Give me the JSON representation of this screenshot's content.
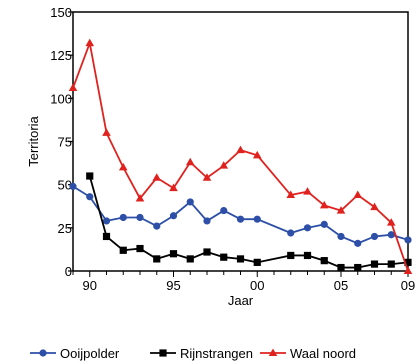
{
  "chart_data": {
    "type": "line",
    "xlabel": "Jaar",
    "ylabel": "Territoria",
    "xlim": [
      1989,
      2009
    ],
    "ylim": [
      0,
      150
    ],
    "x_ticks": [
      {
        "value": 1990,
        "label": "90"
      },
      {
        "value": 1995,
        "label": "95"
      },
      {
        "value": 2000,
        "label": "00"
      },
      {
        "value": 2005,
        "label": "05"
      },
      {
        "value": 2009,
        "label": "09"
      }
    ],
    "y_ticks": [
      {
        "value": 0,
        "label": "0"
      },
      {
        "value": 25,
        "label": "25"
      },
      {
        "value": 50,
        "label": "50"
      },
      {
        "value": 75,
        "label": "75"
      },
      {
        "value": 100,
        "label": "100"
      },
      {
        "value": 125,
        "label": "125"
      },
      {
        "value": 150,
        "label": "150"
      }
    ],
    "grid": false,
    "legend_position": "bottom",
    "series": [
      {
        "name": "Ooijpolder",
        "color": "#2d4fa8",
        "marker": "circle",
        "x": [
          1989,
          1990,
          1991,
          1992,
          1993,
          1994,
          1995,
          1996,
          1997,
          1998,
          1999,
          2000,
          2002,
          2003,
          2004,
          2005,
          2006,
          2007,
          2008,
          2009
        ],
        "y": [
          49,
          43,
          29,
          31,
          31,
          26,
          32,
          40,
          29,
          35,
          30,
          30,
          22,
          25,
          27,
          20,
          16,
          20,
          21,
          18
        ]
      },
      {
        "name": "Rijnstrangen",
        "color": "#000000",
        "marker": "square",
        "x": [
          1990,
          1991,
          1992,
          1993,
          1994,
          1995,
          1996,
          1997,
          1998,
          1999,
          2000,
          2002,
          2003,
          2004,
          2005,
          2006,
          2007,
          2008,
          2009
        ],
        "y": [
          55,
          20,
          12,
          13,
          7,
          10,
          7,
          11,
          8,
          7,
          5,
          9,
          9,
          6,
          2,
          2,
          4,
          4,
          5
        ]
      },
      {
        "name": "Waal noord",
        "color": "#e0221f",
        "marker": "triangle",
        "x": [
          1989,
          1990,
          1991,
          1992,
          1993,
          1994,
          1995,
          1996,
          1997,
          1998,
          1999,
          2000,
          2002,
          2003,
          2004,
          2005,
          2006,
          2007,
          2008,
          2009
        ],
        "y": [
          106,
          132,
          80,
          60,
          42,
          54,
          48,
          63,
          54,
          61,
          70,
          67,
          44,
          46,
          38,
          35,
          44,
          37,
          28,
          0
        ]
      }
    ]
  }
}
